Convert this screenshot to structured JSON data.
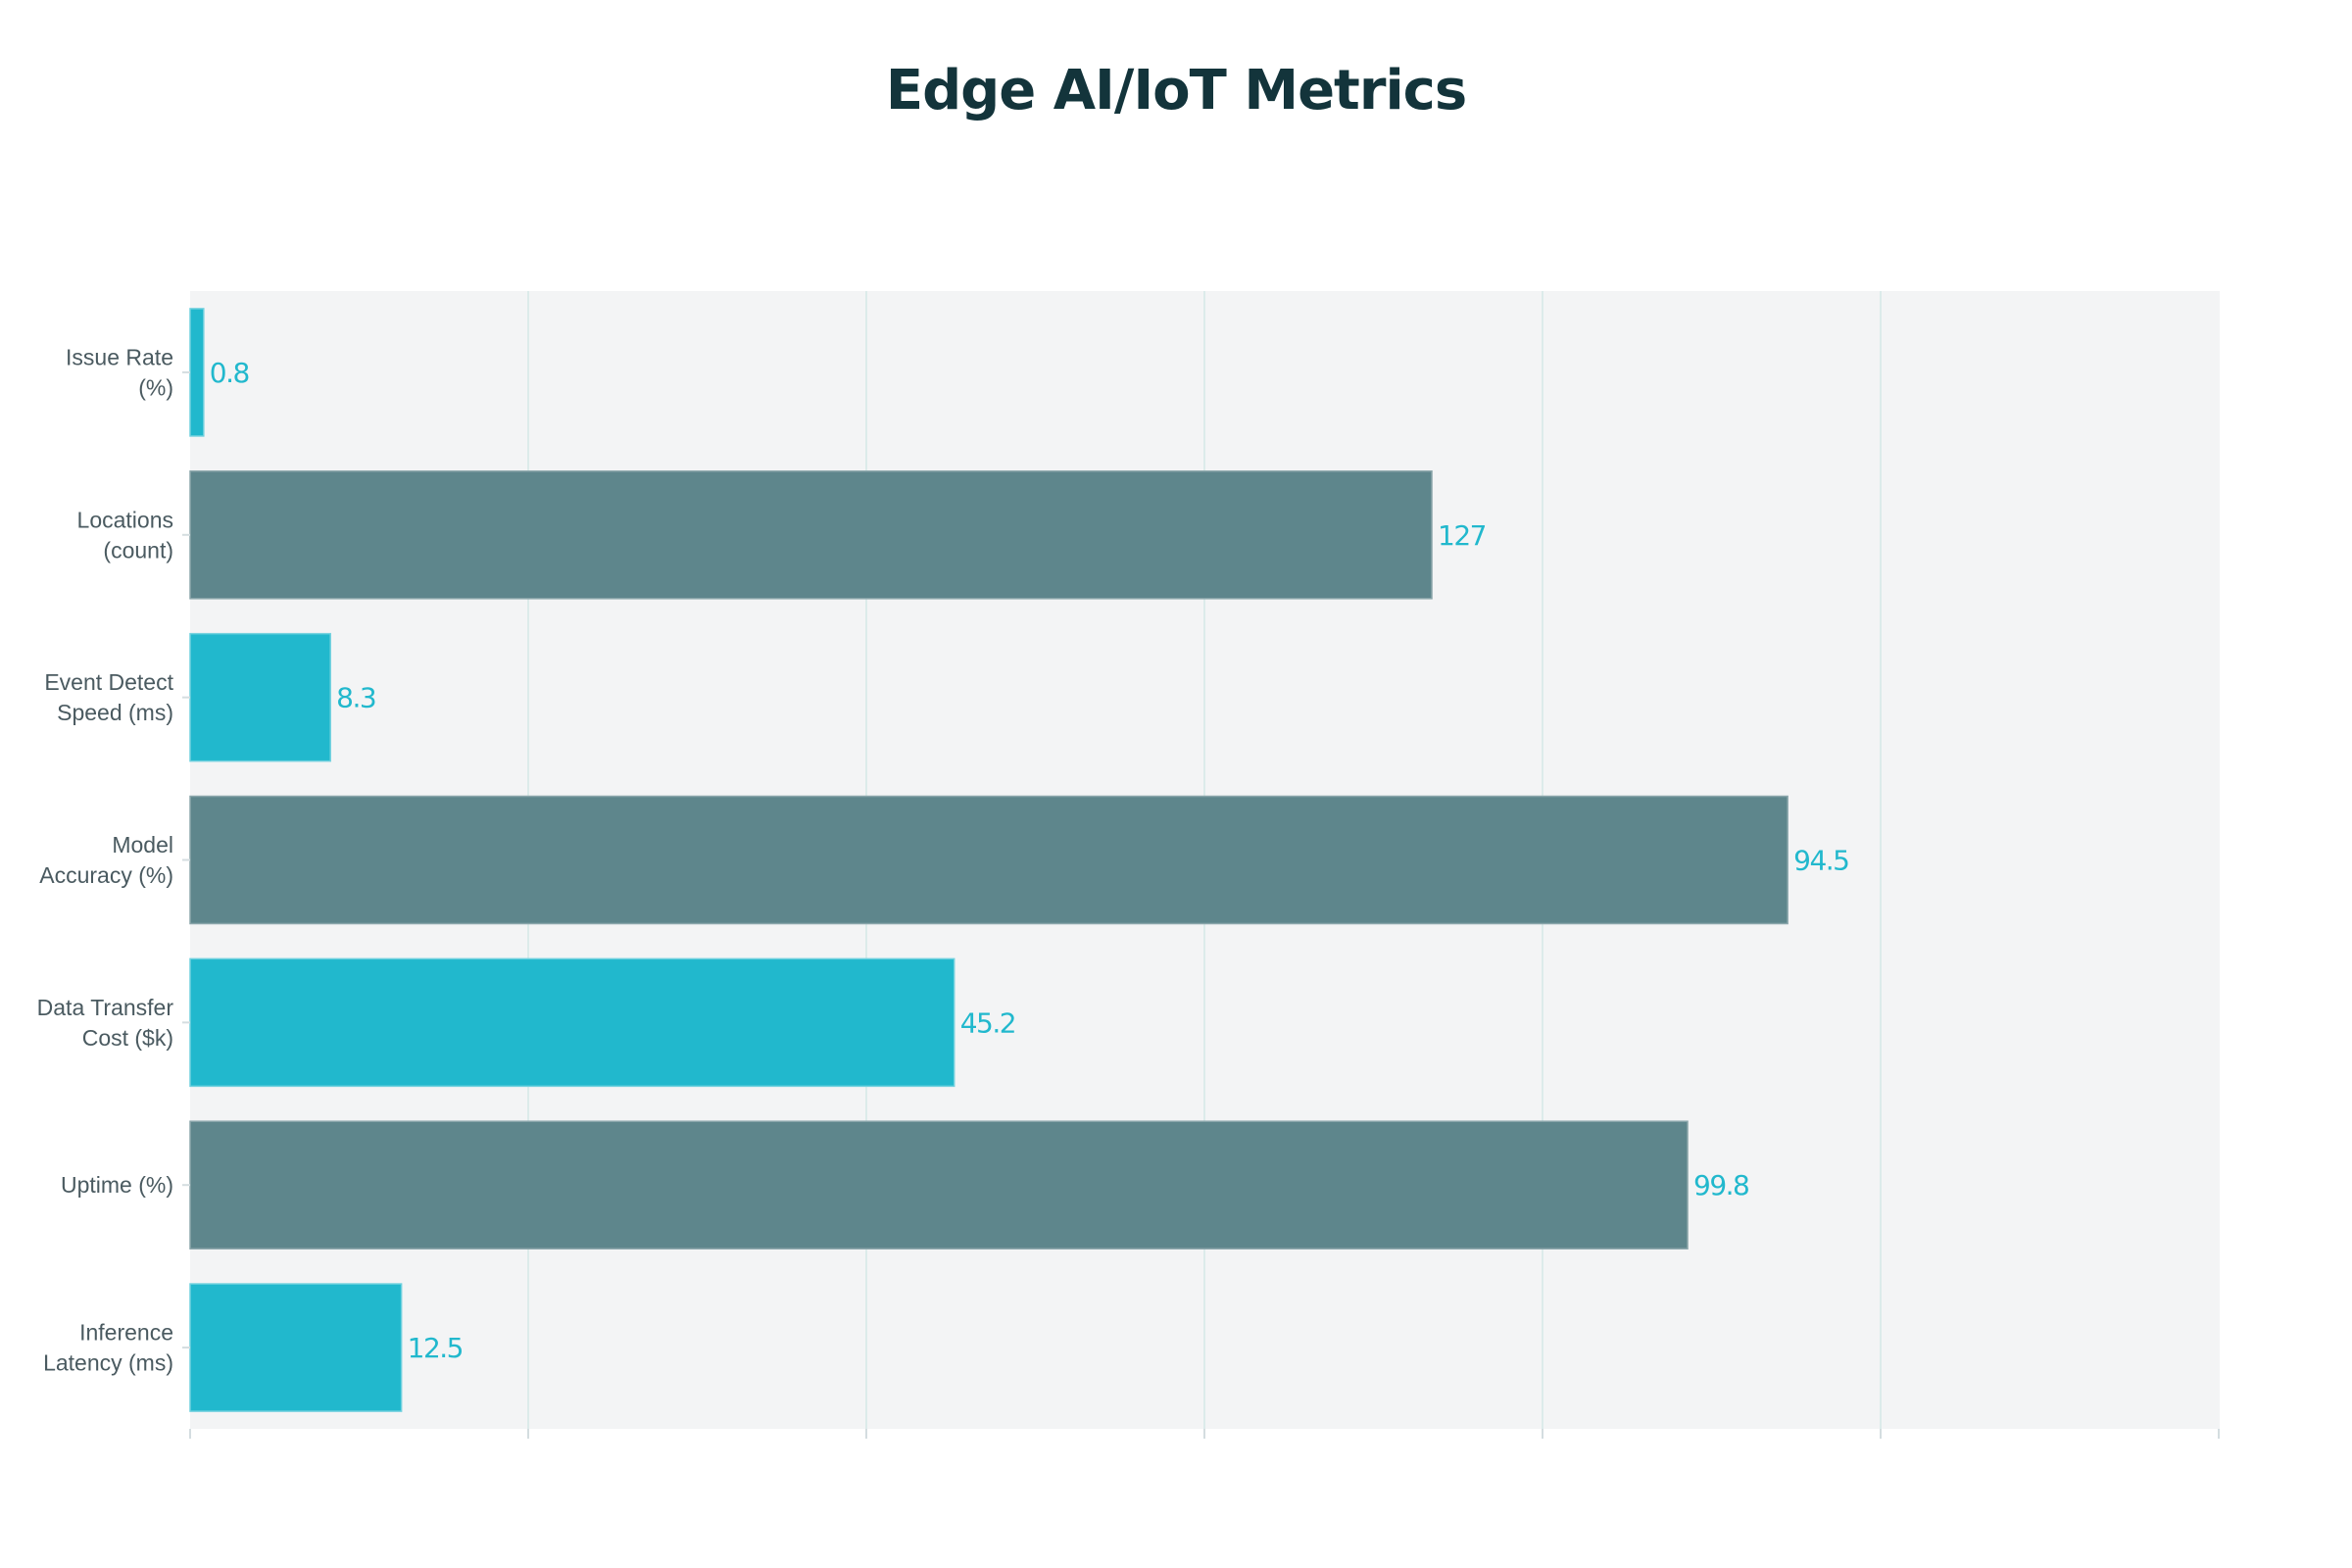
{
  "title": "Edge AI/IoT Metrics",
  "colors": {
    "teal": "#21b8cd",
    "slate": "#5e868c",
    "plot_background": "#f3f4f5",
    "gridline": "#dcebea",
    "label_text": "#4a5a60",
    "value_text": "#21b8cd",
    "title_text": "#13343b"
  },
  "chart_data": {
    "type": "bar",
    "orientation": "horizontal",
    "title": "Edge AI/IoT Metrics",
    "xlabel": "",
    "ylabel": "",
    "xlim": [
      0,
      120
    ],
    "x_scale_note": "bars for Locations and Uptime are drawn clipped; axis ticks unlabeled",
    "grid": true,
    "categories": [
      [
        "Issue Rate",
        "(%)"
      ],
      [
        "Locations",
        "(count)"
      ],
      [
        "Event Detect",
        "Speed (ms)"
      ],
      [
        "Model",
        "Accuracy (%)"
      ],
      [
        "Data Transfer",
        "Cost ($k)"
      ],
      [
        "Uptime (%)"
      ],
      [
        "Inference",
        "Latency (ms)"
      ]
    ],
    "values": [
      0.8,
      127,
      8.3,
      94.5,
      45.2,
      99.8,
      12.5
    ],
    "value_labels": [
      "0.8",
      "127",
      "8.3",
      "94.5",
      "45.2",
      "99.8",
      "12.5"
    ],
    "bar_colors": [
      "#21b8cd",
      "#5e868c",
      "#21b8cd",
      "#5e868c",
      "#21b8cd",
      "#5e868c",
      "#21b8cd"
    ]
  }
}
